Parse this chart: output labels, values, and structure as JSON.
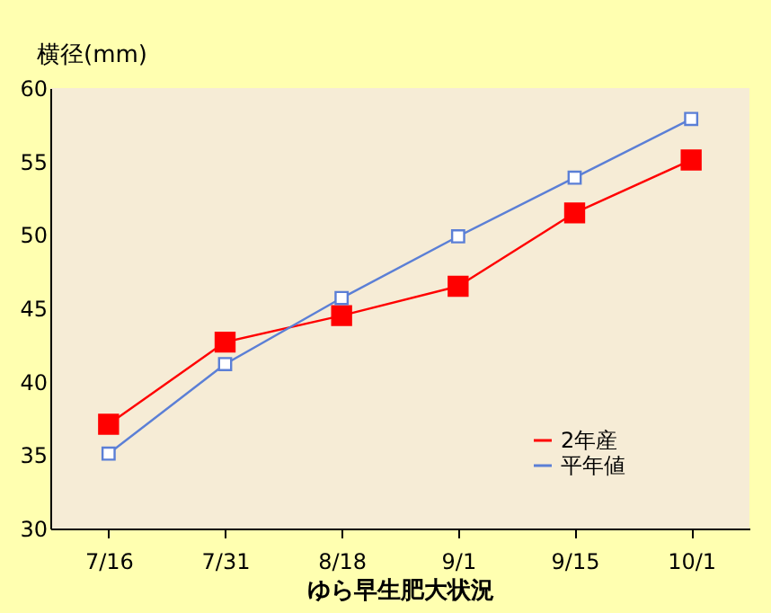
{
  "chart_data": {
    "type": "line",
    "xlabel": "ゆら早生肥大状況",
    "ylabel": "横径(mm)",
    "categories": [
      "7/16",
      "7/31",
      "8/18",
      "9/1",
      "9/15",
      "10/1"
    ],
    "series": [
      {
        "name": "2年産",
        "color": "#ff0000",
        "values": [
          37.1,
          42.7,
          44.5,
          46.5,
          51.5,
          55.1
        ]
      },
      {
        "name": "平年値",
        "color": "#5b7fd6",
        "values": [
          35.1,
          41.2,
          45.7,
          49.9,
          53.9,
          57.9
        ]
      }
    ],
    "ylim": [
      30,
      60
    ],
    "yticks": [
      30,
      35,
      40,
      45,
      50,
      55,
      60
    ],
    "grid": false,
    "legend": "bottom right",
    "marker": "square",
    "line_style": "solid"
  }
}
